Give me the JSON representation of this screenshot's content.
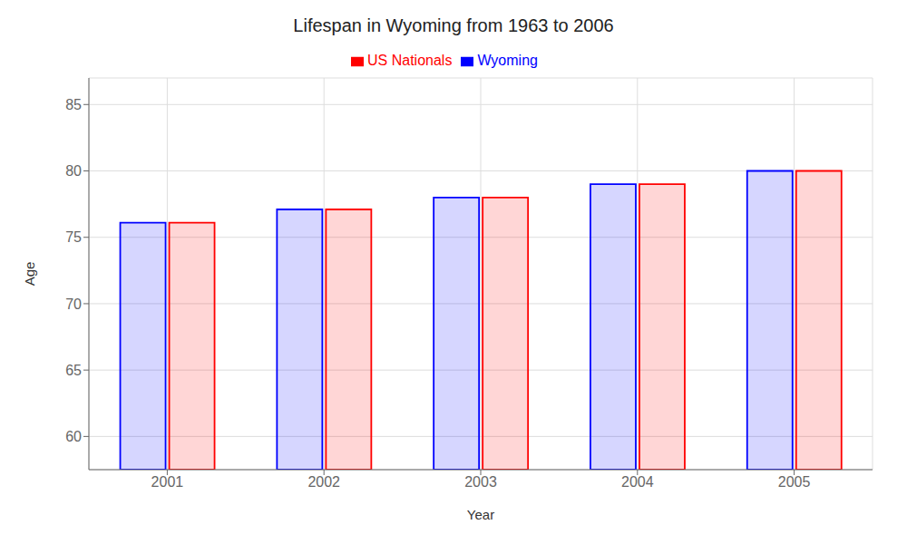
{
  "chart_data": {
    "type": "bar",
    "title": "Lifespan in Wyoming from 1963 to 2006",
    "x_label": "Year",
    "y_label": "Age",
    "categories": [
      "2001",
      "2002",
      "2003",
      "2004",
      "2005"
    ],
    "series": [
      {
        "name": "Wyoming",
        "color": "#0000ff",
        "values": [
          76.1,
          77.1,
          78.0,
          79.0,
          80.0
        ]
      },
      {
        "name": "US Nationals",
        "color": "#ff0000",
        "values": [
          76.1,
          77.1,
          78.0,
          79.0,
          80.0
        ]
      }
    ],
    "ylim": [
      57.5,
      87
    ],
    "yticks": [
      60,
      65,
      70,
      75,
      80,
      85
    ],
    "grid": true,
    "legend": "top"
  }
}
